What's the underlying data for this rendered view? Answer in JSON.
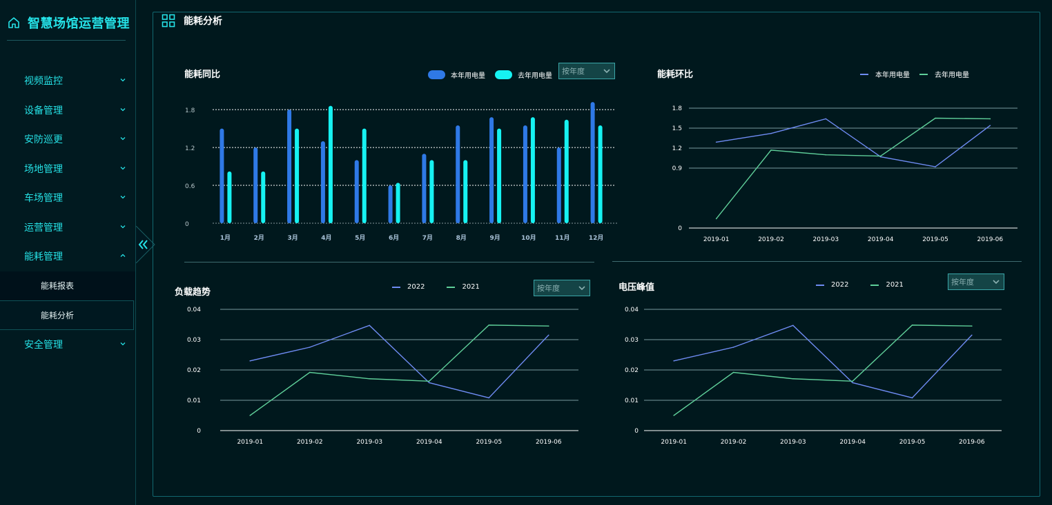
{
  "sidebar": {
    "title": "智慧场馆运营管理",
    "items": [
      {
        "label": "视频监控",
        "expanded": false
      },
      {
        "label": "设备管理",
        "expanded": false
      },
      {
        "label": "安防巡更",
        "expanded": false
      },
      {
        "label": "场地管理",
        "expanded": false
      },
      {
        "label": "车场管理",
        "expanded": false
      },
      {
        "label": "运营管理",
        "expanded": false
      },
      {
        "label": "能耗管理",
        "expanded": true
      },
      {
        "label": "安全管理",
        "expanded": false
      }
    ],
    "subitems": [
      {
        "label": "能耗报表",
        "active": false
      },
      {
        "label": "能耗分析",
        "active": true
      }
    ]
  },
  "page": {
    "title": "能耗分析"
  },
  "colors": {
    "accent": "#25e3e8",
    "series_a_bar": "#2f79e6",
    "series_b_bar": "#16f2f2",
    "line_a": "#6f8cf3",
    "line_b": "#5fcf9a"
  },
  "selects": {
    "yearly": "按年度"
  },
  "chart_data": [
    {
      "id": "yoy",
      "type": "bar",
      "title": "能耗同比",
      "categories": [
        "1月",
        "2月",
        "3月",
        "4月",
        "5月",
        "6月",
        "7月",
        "8月",
        "9月",
        "10月",
        "11月",
        "12月"
      ],
      "series": [
        {
          "name": "本年用电量",
          "values": [
            1.5,
            1.2,
            1.8,
            1.3,
            1.0,
            0.6,
            1.1,
            1.55,
            1.68,
            1.55,
            1.2,
            1.92
          ]
        },
        {
          "name": "去年用电量",
          "values": [
            0.82,
            0.82,
            1.5,
            1.86,
            1.5,
            0.64,
            1.0,
            1.0,
            1.5,
            1.68,
            1.64,
            1.55
          ]
        }
      ],
      "yticks": [
        "0",
        "0.6",
        "1.2",
        "1.8"
      ],
      "ylim": [
        0,
        1.9
      ],
      "grid": true,
      "legend": "top-right"
    },
    {
      "id": "mom",
      "type": "line",
      "title": "能耗环比",
      "categories": [
        "2019-01",
        "2019-02",
        "2019-03",
        "2019-04",
        "2019-05",
        "2019-06"
      ],
      "series": [
        {
          "name": "本年用电量",
          "values": [
            1.29,
            1.42,
            1.64,
            1.07,
            0.92,
            1.54
          ]
        },
        {
          "name": "去年用电量",
          "values": [
            0.14,
            1.17,
            1.1,
            1.08,
            1.65,
            1.64
          ]
        }
      ],
      "yticks": [
        "0",
        "0.9",
        "1.2",
        "1.5",
        "1.8"
      ],
      "ylim": [
        0,
        1.8
      ],
      "grid": true,
      "legend": "top-right"
    },
    {
      "id": "load",
      "type": "line",
      "title": "负载趋势",
      "categories": [
        "2019-01",
        "2019-02",
        "2019-03",
        "2019-04",
        "2019-05",
        "2019-06"
      ],
      "series": [
        {
          "name": "2022",
          "values": [
            0.023,
            0.0275,
            0.0347,
            0.0158,
            0.0108,
            0.0315
          ]
        },
        {
          "name": "2021",
          "values": [
            0.005,
            0.0192,
            0.0171,
            0.0163,
            0.0348,
            0.0345
          ]
        }
      ],
      "yticks": [
        "0",
        "0.01",
        "0.02",
        "0.03",
        "0.04"
      ],
      "ylim": [
        0,
        0.04
      ],
      "grid": true,
      "legend": "top-center"
    },
    {
      "id": "voltage",
      "type": "line",
      "title": "电压峰值",
      "categories": [
        "2019-01",
        "2019-02",
        "2019-03",
        "2019-04",
        "2019-05",
        "2019-06"
      ],
      "series": [
        {
          "name": "2022",
          "values": [
            0.023,
            0.0275,
            0.0347,
            0.0158,
            0.0108,
            0.0315
          ]
        },
        {
          "name": "2021",
          "values": [
            0.005,
            0.0192,
            0.0171,
            0.0163,
            0.0348,
            0.0345
          ]
        }
      ],
      "yticks": [
        "0",
        "0.01",
        "0.02",
        "0.03",
        "0.04"
      ],
      "ylim": [
        0,
        0.04
      ],
      "grid": true,
      "legend": "top-center"
    }
  ]
}
